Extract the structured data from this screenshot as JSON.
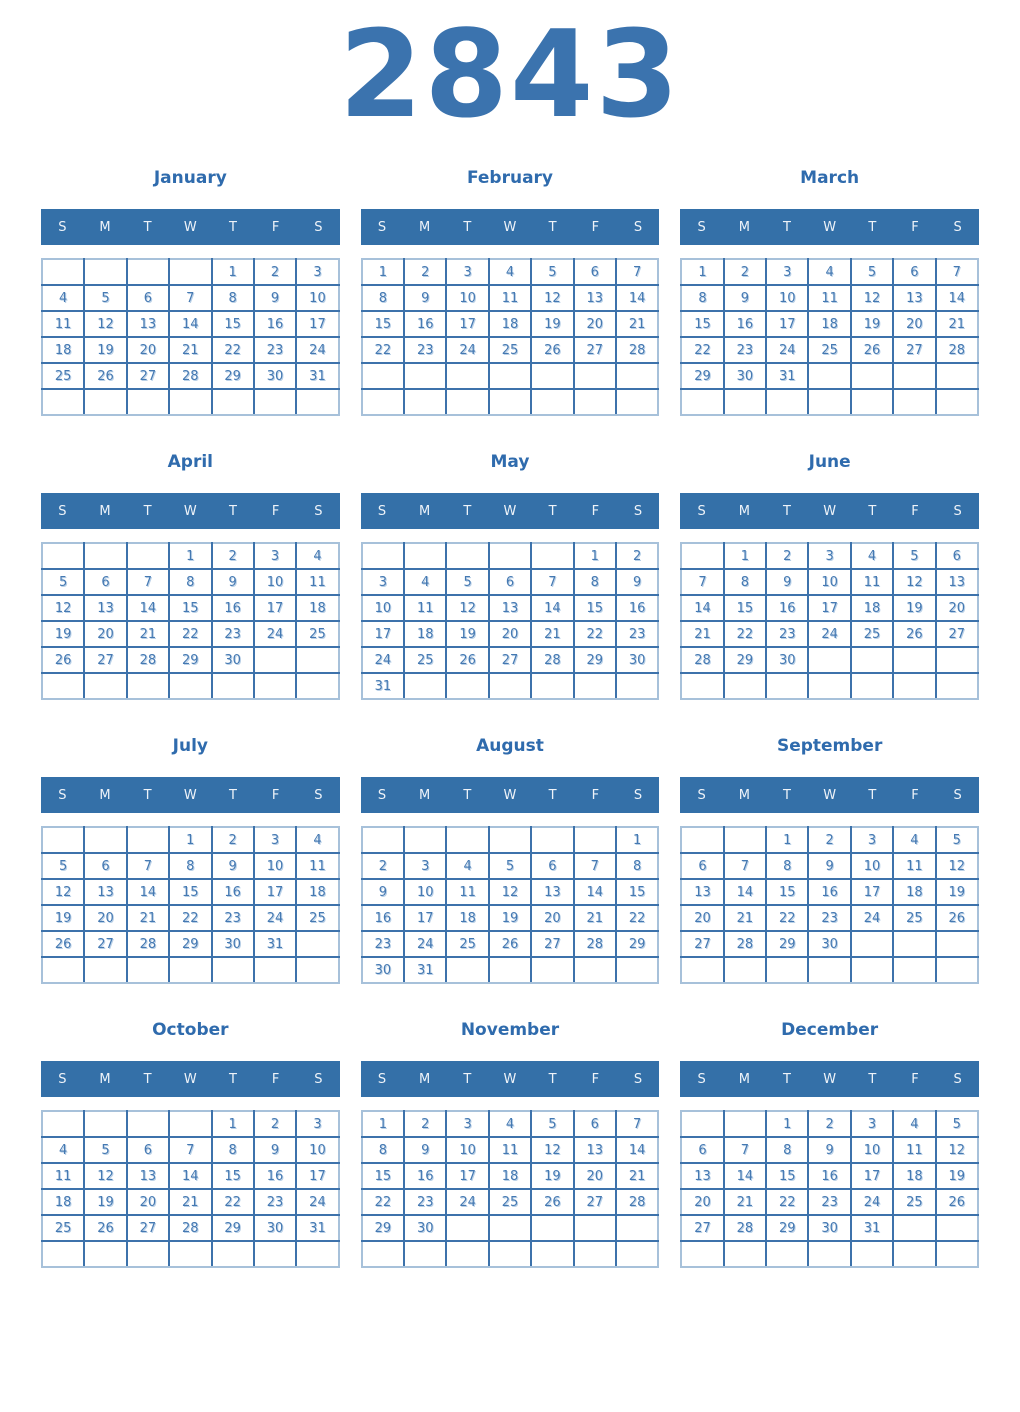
{
  "year": "2843",
  "colors": {
    "background": "#ffffff",
    "accent": "#3b73ae",
    "month_title": "#2f6bad",
    "header_bg": "#3470a8",
    "header_text": "#eef3f9",
    "grid_inner_border": "#3d72ab",
    "grid_outer_border": "#a7c1da",
    "day_number": "#4579b2",
    "day_number_shadow": "#b9d0e7"
  },
  "day_headers": [
    "S",
    "M",
    "T",
    "W",
    "T",
    "F",
    "S"
  ],
  "months": [
    {
      "name": "January",
      "weeks": [
        [
          "",
          "",
          "",
          "",
          "1",
          "2",
          "3"
        ],
        [
          "4",
          "5",
          "6",
          "7",
          "8",
          "9",
          "10"
        ],
        [
          "11",
          "12",
          "13",
          "14",
          "15",
          "16",
          "17"
        ],
        [
          "18",
          "19",
          "20",
          "21",
          "22",
          "23",
          "24"
        ],
        [
          "25",
          "26",
          "27",
          "28",
          "29",
          "30",
          "31"
        ],
        [
          "",
          "",
          "",
          "",
          "",
          "",
          ""
        ]
      ]
    },
    {
      "name": "February",
      "weeks": [
        [
          "1",
          "2",
          "3",
          "4",
          "5",
          "6",
          "7"
        ],
        [
          "8",
          "9",
          "10",
          "11",
          "12",
          "13",
          "14"
        ],
        [
          "15",
          "16",
          "17",
          "18",
          "19",
          "20",
          "21"
        ],
        [
          "22",
          "23",
          "24",
          "25",
          "26",
          "27",
          "28"
        ],
        [
          "",
          "",
          "",
          "",
          "",
          "",
          ""
        ],
        [
          "",
          "",
          "",
          "",
          "",
          "",
          ""
        ]
      ]
    },
    {
      "name": "March",
      "weeks": [
        [
          "1",
          "2",
          "3",
          "4",
          "5",
          "6",
          "7"
        ],
        [
          "8",
          "9",
          "10",
          "11",
          "12",
          "13",
          "14"
        ],
        [
          "15",
          "16",
          "17",
          "18",
          "19",
          "20",
          "21"
        ],
        [
          "22",
          "23",
          "24",
          "25",
          "26",
          "27",
          "28"
        ],
        [
          "29",
          "30",
          "31",
          "",
          "",
          "",
          ""
        ],
        [
          "",
          "",
          "",
          "",
          "",
          "",
          ""
        ]
      ]
    },
    {
      "name": "April",
      "weeks": [
        [
          "",
          "",
          "",
          "1",
          "2",
          "3",
          "4"
        ],
        [
          "5",
          "6",
          "7",
          "8",
          "9",
          "10",
          "11"
        ],
        [
          "12",
          "13",
          "14",
          "15",
          "16",
          "17",
          "18"
        ],
        [
          "19",
          "20",
          "21",
          "22",
          "23",
          "24",
          "25"
        ],
        [
          "26",
          "27",
          "28",
          "29",
          "30",
          "",
          ""
        ],
        [
          "",
          "",
          "",
          "",
          "",
          "",
          ""
        ]
      ]
    },
    {
      "name": "May",
      "weeks": [
        [
          "",
          "",
          "",
          "",
          "",
          "1",
          "2"
        ],
        [
          "3",
          "4",
          "5",
          "6",
          "7",
          "8",
          "9"
        ],
        [
          "10",
          "11",
          "12",
          "13",
          "14",
          "15",
          "16"
        ],
        [
          "17",
          "18",
          "19",
          "20",
          "21",
          "22",
          "23"
        ],
        [
          "24",
          "25",
          "26",
          "27",
          "28",
          "29",
          "30"
        ],
        [
          "31",
          "",
          "",
          "",
          "",
          "",
          ""
        ]
      ]
    },
    {
      "name": "June",
      "weeks": [
        [
          "",
          "1",
          "2",
          "3",
          "4",
          "5",
          "6"
        ],
        [
          "7",
          "8",
          "9",
          "10",
          "11",
          "12",
          "13"
        ],
        [
          "14",
          "15",
          "16",
          "17",
          "18",
          "19",
          "20"
        ],
        [
          "21",
          "22",
          "23",
          "24",
          "25",
          "26",
          "27"
        ],
        [
          "28",
          "29",
          "30",
          "",
          "",
          "",
          ""
        ],
        [
          "",
          "",
          "",
          "",
          "",
          "",
          ""
        ]
      ]
    },
    {
      "name": "July",
      "weeks": [
        [
          "",
          "",
          "",
          "1",
          "2",
          "3",
          "4"
        ],
        [
          "5",
          "6",
          "7",
          "8",
          "9",
          "10",
          "11"
        ],
        [
          "12",
          "13",
          "14",
          "15",
          "16",
          "17",
          "18"
        ],
        [
          "19",
          "20",
          "21",
          "22",
          "23",
          "24",
          "25"
        ],
        [
          "26",
          "27",
          "28",
          "29",
          "30",
          "31",
          ""
        ],
        [
          "",
          "",
          "",
          "",
          "",
          "",
          ""
        ]
      ]
    },
    {
      "name": "August",
      "weeks": [
        [
          "",
          "",
          "",
          "",
          "",
          "",
          "1"
        ],
        [
          "2",
          "3",
          "4",
          "5",
          "6",
          "7",
          "8"
        ],
        [
          "9",
          "10",
          "11",
          "12",
          "13",
          "14",
          "15"
        ],
        [
          "16",
          "17",
          "18",
          "19",
          "20",
          "21",
          "22"
        ],
        [
          "23",
          "24",
          "25",
          "26",
          "27",
          "28",
          "29"
        ],
        [
          "30",
          "31",
          "",
          "",
          "",
          "",
          ""
        ]
      ]
    },
    {
      "name": "September",
      "weeks": [
        [
          "",
          "",
          "1",
          "2",
          "3",
          "4",
          "5"
        ],
        [
          "6",
          "7",
          "8",
          "9",
          "10",
          "11",
          "12"
        ],
        [
          "13",
          "14",
          "15",
          "16",
          "17",
          "18",
          "19"
        ],
        [
          "20",
          "21",
          "22",
          "23",
          "24",
          "25",
          "26"
        ],
        [
          "27",
          "28",
          "29",
          "30",
          "",
          "",
          ""
        ],
        [
          "",
          "",
          "",
          "",
          "",
          "",
          ""
        ]
      ]
    },
    {
      "name": "October",
      "weeks": [
        [
          "",
          "",
          "",
          "",
          "1",
          "2",
          "3"
        ],
        [
          "4",
          "5",
          "6",
          "7",
          "8",
          "9",
          "10"
        ],
        [
          "11",
          "12",
          "13",
          "14",
          "15",
          "16",
          "17"
        ],
        [
          "18",
          "19",
          "20",
          "21",
          "22",
          "23",
          "24"
        ],
        [
          "25",
          "26",
          "27",
          "28",
          "29",
          "30",
          "31"
        ],
        [
          "",
          "",
          "",
          "",
          "",
          "",
          ""
        ]
      ]
    },
    {
      "name": "November",
      "weeks": [
        [
          "1",
          "2",
          "3",
          "4",
          "5",
          "6",
          "7"
        ],
        [
          "8",
          "9",
          "10",
          "11",
          "12",
          "13",
          "14"
        ],
        [
          "15",
          "16",
          "17",
          "18",
          "19",
          "20",
          "21"
        ],
        [
          "22",
          "23",
          "24",
          "25",
          "26",
          "27",
          "28"
        ],
        [
          "29",
          "30",
          "",
          "",
          "",
          "",
          ""
        ],
        [
          "",
          "",
          "",
          "",
          "",
          "",
          ""
        ]
      ]
    },
    {
      "name": "December",
      "weeks": [
        [
          "",
          "",
          "1",
          "2",
          "3",
          "4",
          "5"
        ],
        [
          "6",
          "7",
          "8",
          "9",
          "10",
          "11",
          "12"
        ],
        [
          "13",
          "14",
          "15",
          "16",
          "17",
          "18",
          "19"
        ],
        [
          "20",
          "21",
          "22",
          "23",
          "24",
          "25",
          "26"
        ],
        [
          "27",
          "28",
          "29",
          "30",
          "31",
          "",
          ""
        ],
        [
          "",
          "",
          "",
          "",
          "",
          "",
          ""
        ]
      ]
    }
  ]
}
